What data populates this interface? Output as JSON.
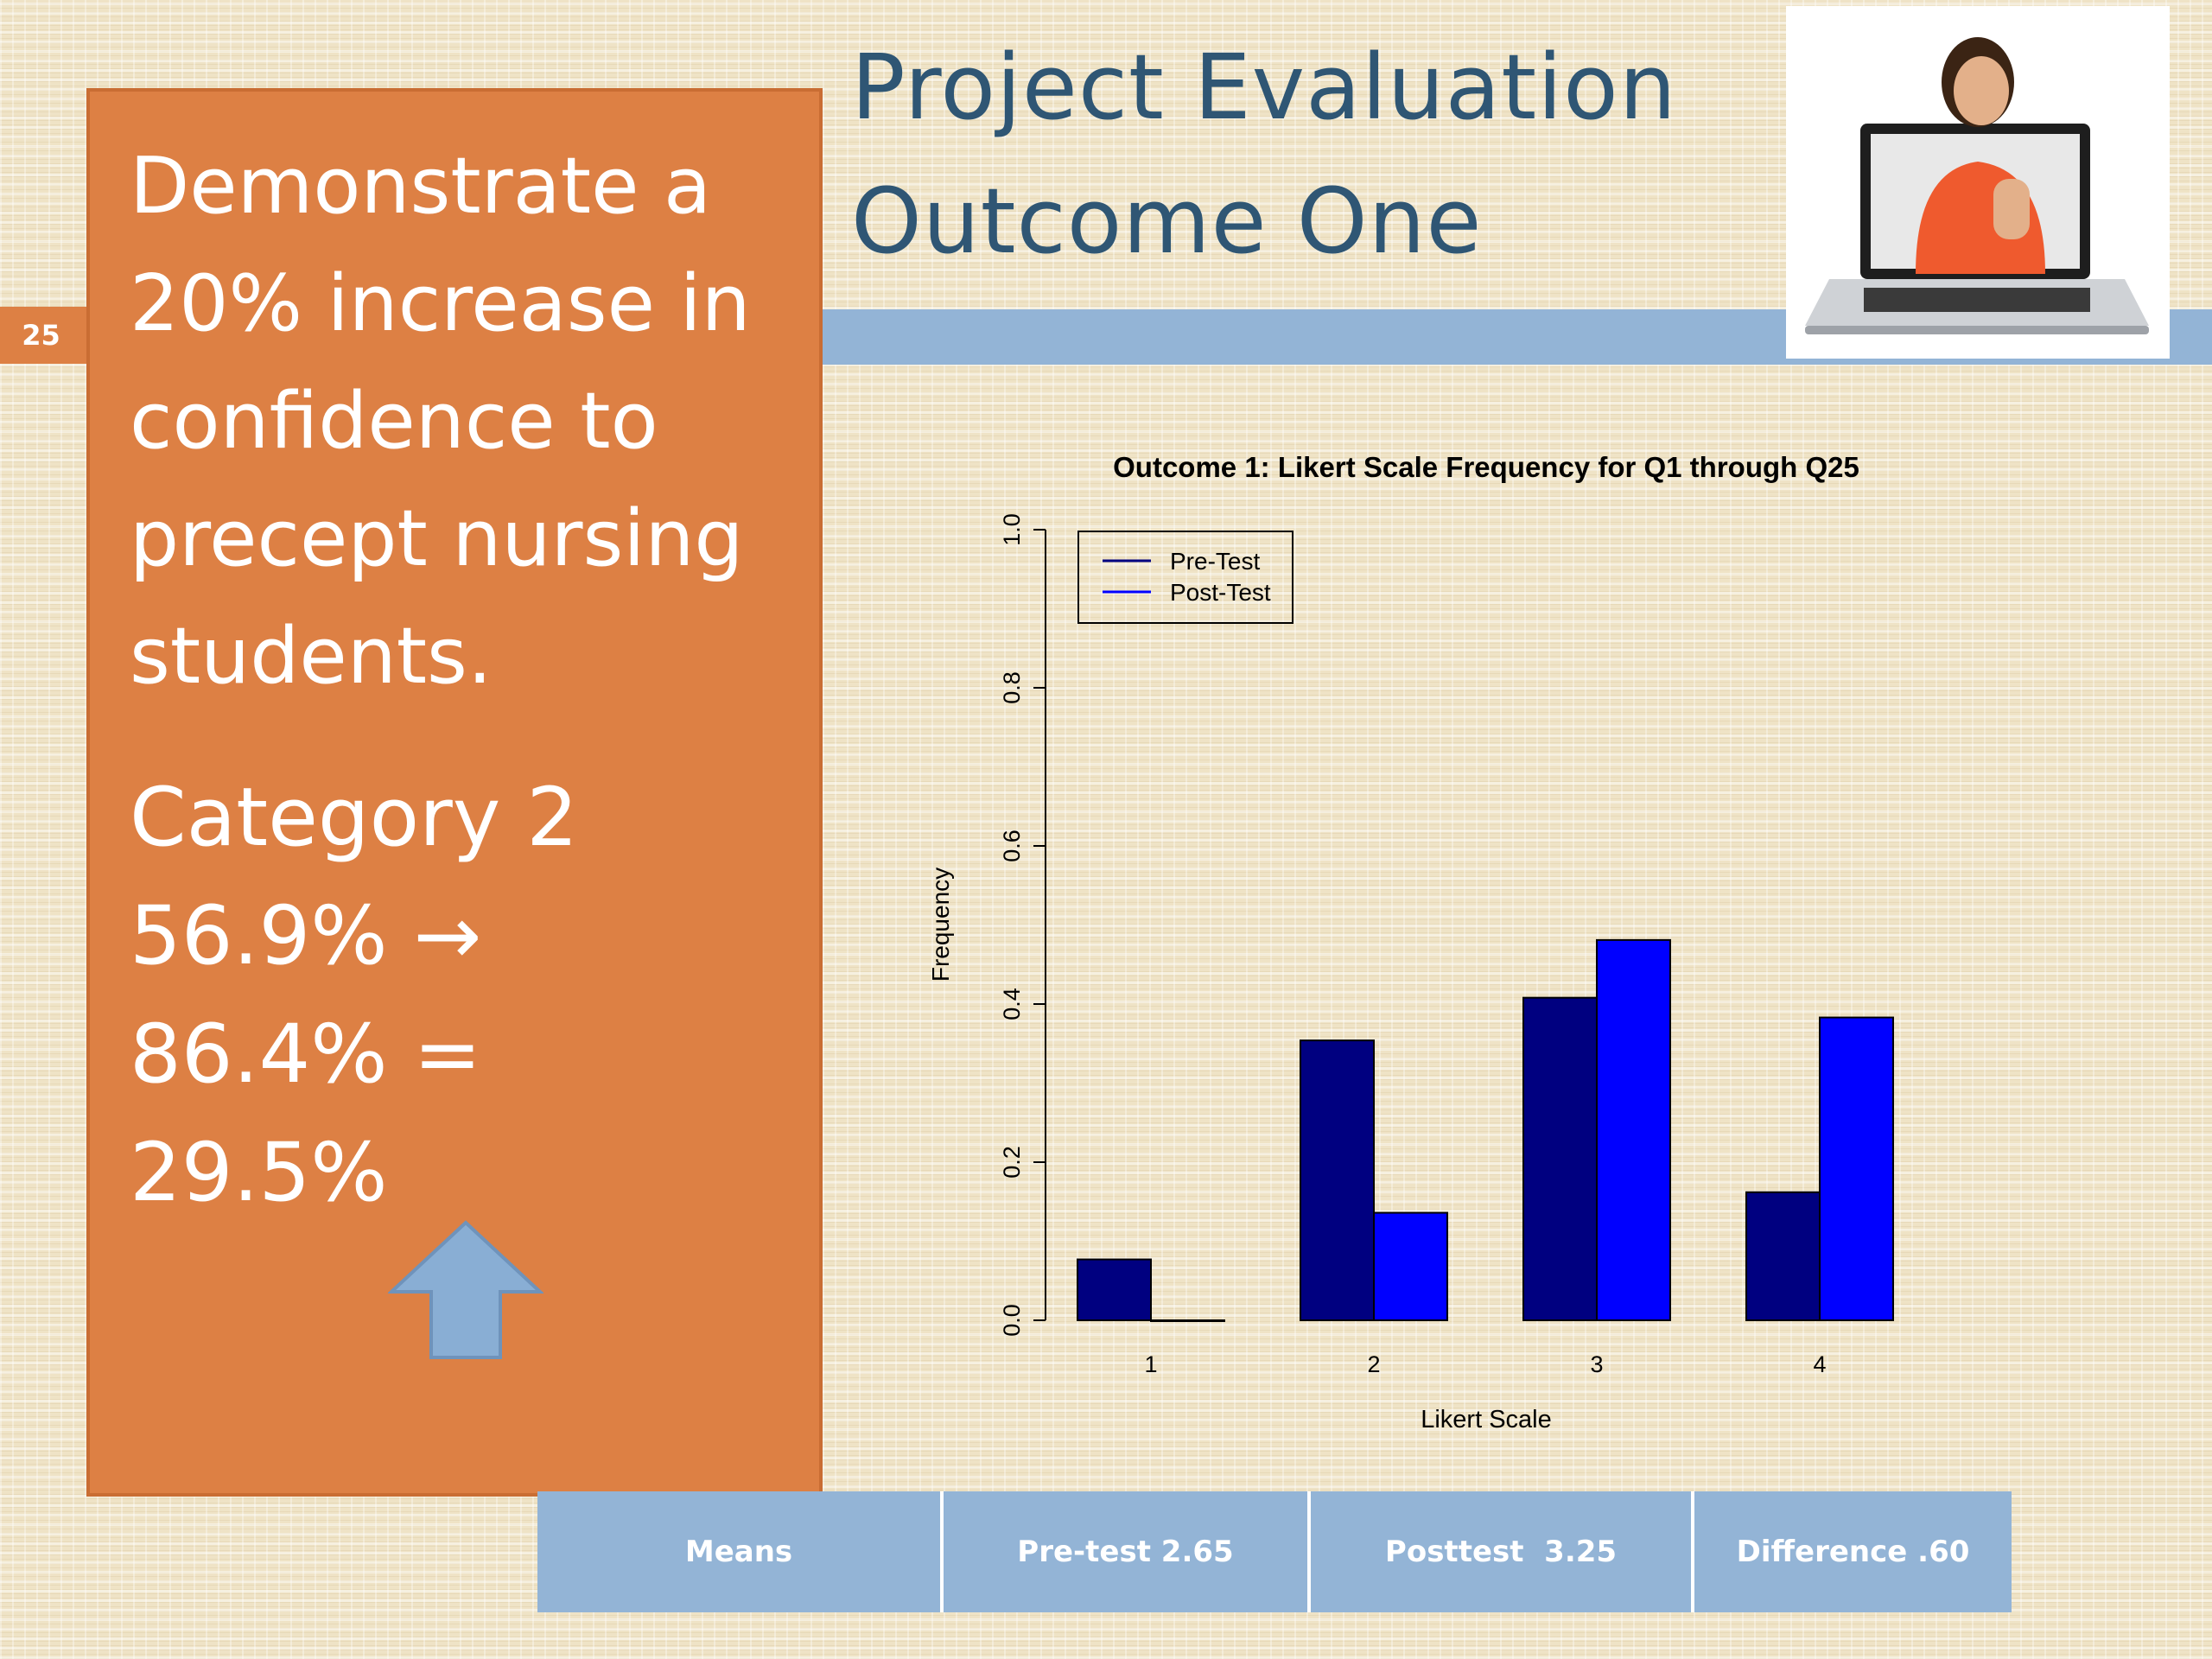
{
  "slide": {
    "number": "25",
    "title_line1": "Project Evaluation",
    "title_line2": "Outcome One"
  },
  "panel": {
    "statement": "Demonstrate a 20% increase in confidence to precept nursing students.",
    "category_label": "Category 2",
    "line_a": "56.9% →",
    "line_b": "86.4% =",
    "line_c": "29.5%"
  },
  "table": {
    "cells": [
      "Means",
      "Pre-test 2.65",
      "Posttest  3.25",
      "Difference .60"
    ]
  },
  "colors": {
    "accent_orange": "#dd8044",
    "band_blue": "#93b4d6",
    "title_blue": "#2f5674",
    "pre_test": "#000080",
    "post_test": "#0000ff"
  },
  "chart_data": {
    "type": "bar",
    "title": "Outcome 1: Likert Scale Frequency for Q1 through Q25",
    "xlabel": "Likert Scale",
    "ylabel": "Frequency",
    "categories": [
      "1",
      "2",
      "3",
      "4"
    ],
    "ylim": [
      0,
      1.0
    ],
    "yticks": [
      "0.0",
      "0.2",
      "0.4",
      "0.6",
      "0.8",
      "1.0"
    ],
    "legend_position": "top-left",
    "series": [
      {
        "name": "Pre-Test",
        "color": "#000080",
        "values": [
          0.077,
          0.354,
          0.408,
          0.162
        ]
      },
      {
        "name": "Post-Test",
        "color": "#0000ff",
        "values": [
          0.0,
          0.136,
          0.481,
          0.383
        ]
      }
    ]
  }
}
